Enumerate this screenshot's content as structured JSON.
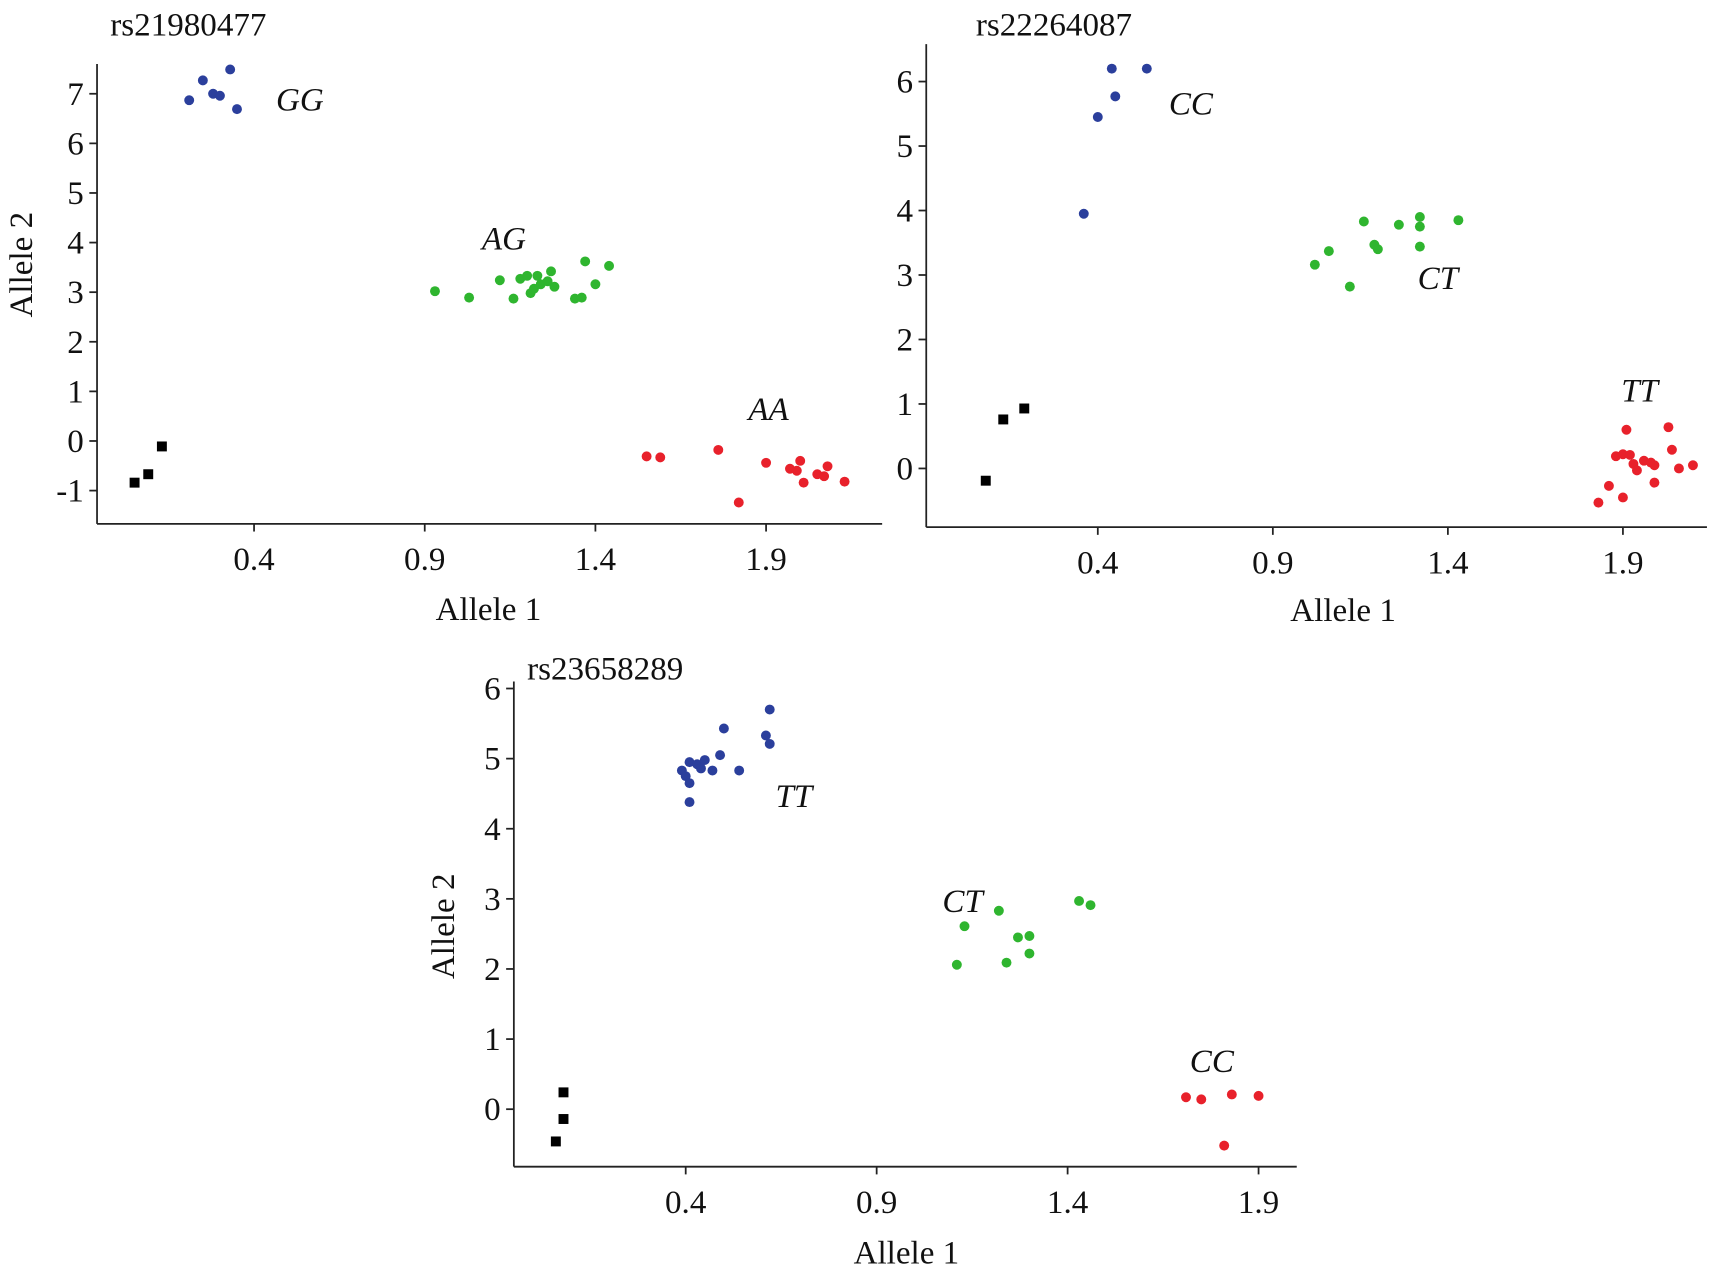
{
  "chart_data": [
    {
      "type": "scatter",
      "title": "rs21980477",
      "xlabel": "Allele 1",
      "ylabel": "Allele 2",
      "xlim": [
        -0.06,
        2.24
      ],
      "ylim": [
        -1.67,
        7.6
      ],
      "xticks": [
        0.4,
        0.9,
        1.4,
        1.9
      ],
      "yticks": [
        -1,
        0,
        1,
        2,
        3,
        4,
        5,
        6,
        7
      ],
      "series": [
        {
          "name": "GG",
          "color": "#2b3f9c",
          "x": [
            0.21,
            0.25,
            0.28,
            0.3,
            0.33,
            0.35
          ],
          "values": [
            6.87,
            7.27,
            7.0,
            6.96,
            7.49,
            6.69
          ]
        },
        {
          "name": "AG",
          "color": "#2fb52f",
          "x": [
            0.93,
            1.03,
            1.12,
            1.16,
            1.18,
            1.2,
            1.21,
            1.23,
            1.22,
            1.24,
            1.26,
            1.27,
            1.28,
            1.34,
            1.36,
            1.37,
            1.4,
            1.44
          ],
          "values": [
            3.02,
            2.89,
            3.24,
            2.87,
            3.27,
            3.33,
            2.98,
            3.33,
            3.07,
            3.16,
            3.22,
            3.42,
            3.11,
            2.87,
            2.89,
            3.62,
            3.16,
            3.53
          ]
        },
        {
          "name": "AA",
          "color": "#e8212b",
          "x": [
            1.55,
            1.59,
            1.76,
            1.82,
            1.9,
            1.97,
            1.99,
            2.0,
            2.01,
            2.05,
            2.07,
            2.08,
            2.13
          ],
          "values": [
            -0.31,
            -0.33,
            -0.18,
            -1.24,
            -0.44,
            -0.56,
            -0.6,
            -0.4,
            -0.84,
            -0.67,
            -0.71,
            -0.51,
            -0.82
          ]
        },
        {
          "color": "#000000",
          "marker": "square",
          "x": [
            0.05,
            0.09,
            0.13
          ],
          "values": [
            -0.84,
            -0.67,
            -0.11
          ]
        }
      ]
    },
    {
      "type": "scatter",
      "title": "rs22264087",
      "xlabel": "Allele 1",
      "xlim": [
        -0.09,
        2.14
      ],
      "ylim": [
        -0.91,
        6.58
      ],
      "xticks": [
        0.4,
        0.9,
        1.4,
        1.9
      ],
      "yticks": [
        0,
        1,
        2,
        3,
        4,
        5,
        6
      ],
      "series": [
        {
          "name": "CC",
          "color": "#2b3f9c",
          "x": [
            0.44,
            0.54,
            0.45,
            0.4,
            0.36
          ],
          "values": [
            6.2,
            6.2,
            5.77,
            5.45,
            3.95
          ]
        },
        {
          "name": "CT",
          "color": "#2fb52f",
          "x": [
            1.02,
            1.06,
            1.12,
            1.16,
            1.19,
            1.2,
            1.26,
            1.32,
            1.32,
            1.32,
            1.43
          ],
          "values": [
            3.16,
            3.37,
            2.82,
            3.83,
            3.47,
            3.4,
            3.78,
            3.9,
            3.75,
            3.44,
            3.85
          ]
        },
        {
          "name": "TT",
          "color": "#e8212b",
          "x": [
            1.83,
            1.86,
            1.88,
            1.9,
            1.91,
            1.9,
            1.92,
            1.93,
            1.94,
            1.96,
            1.98,
            1.99,
            1.99,
            2.03,
            2.04,
            2.06,
            2.1
          ],
          "values": [
            -0.53,
            -0.27,
            0.19,
            0.22,
            0.6,
            -0.45,
            0.21,
            0.07,
            -0.03,
            0.12,
            0.09,
            0.05,
            -0.22,
            0.64,
            0.29,
            0,
            0.05
          ]
        },
        {
          "color": "#000000",
          "marker": "square",
          "x": [
            0.08,
            0.13,
            0.19
          ],
          "values": [
            -0.19,
            0.76,
            0.93
          ]
        }
      ]
    },
    {
      "type": "scatter",
      "title": "rs23658289",
      "xlabel": "Allele 1",
      "ylabel": "Allele 2",
      "xlim": [
        -0.05,
        2.0
      ],
      "ylim": [
        -0.82,
        6.1
      ],
      "xticks": [
        0.4,
        0.9,
        1.4,
        1.9
      ],
      "yticks": [
        0,
        1,
        2,
        3,
        4,
        5,
        6
      ],
      "series": [
        {
          "name": "TT",
          "color": "#2b3f9c",
          "x": [
            0.39,
            0.4,
            0.41,
            0.41,
            0.41,
            0.43,
            0.44,
            0.45,
            0.47,
            0.49,
            0.5,
            0.54,
            0.61,
            0.62,
            0.62
          ],
          "values": [
            4.83,
            4.75,
            4.65,
            4.38,
            4.95,
            4.92,
            4.86,
            4.98,
            4.83,
            5.05,
            5.43,
            4.83,
            5.33,
            5.7,
            5.21
          ]
        },
        {
          "name": "CT",
          "color": "#2fb52f",
          "x": [
            1.11,
            1.13,
            1.22,
            1.24,
            1.27,
            1.3,
            1.3,
            1.43,
            1.46
          ],
          "values": [
            2.06,
            2.61,
            2.83,
            2.09,
            2.45,
            2.47,
            2.22,
            2.97,
            2.91
          ]
        },
        {
          "name": "CC",
          "color": "#e8212b",
          "x": [
            1.71,
            1.75,
            1.81,
            1.83,
            1.9
          ],
          "values": [
            0.17,
            0.14,
            -0.52,
            0.21,
            0.19
          ]
        },
        {
          "color": "#000000",
          "marker": "square",
          "x": [
            0.06,
            0.08,
            0.08
          ],
          "values": [
            -0.46,
            -0.14,
            0.24
          ]
        }
      ]
    }
  ]
}
